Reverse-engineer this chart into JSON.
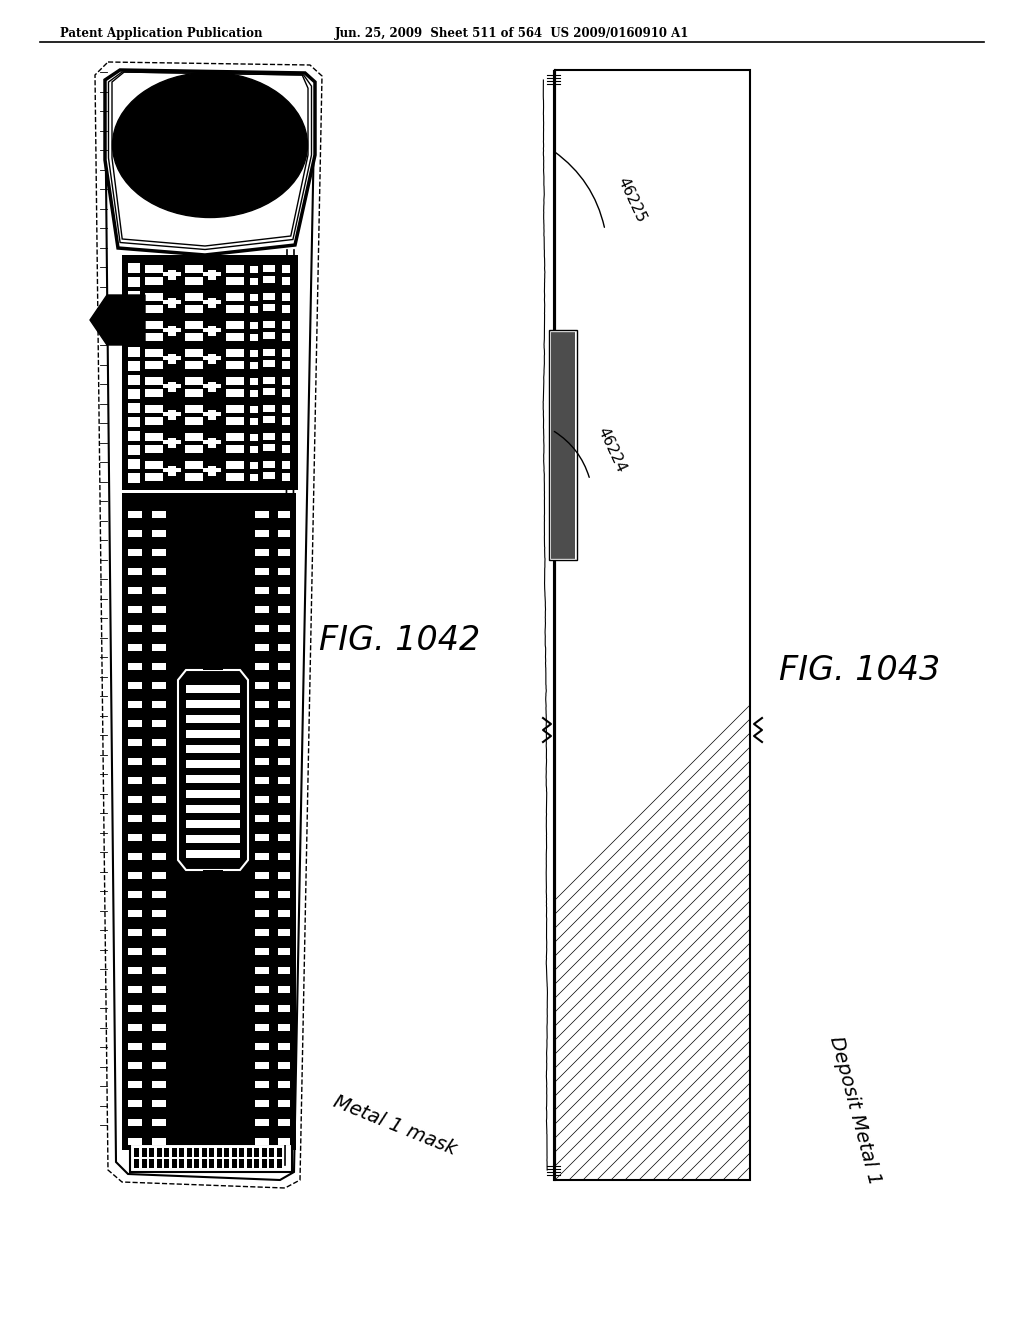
{
  "page_title_left": "Patent Application Publication",
  "page_title_center": "Jun. 25, 2009  Sheet 511 of 564  US 2009/0160910 A1",
  "fig1_label": "FIG. 1042",
  "fig2_label": "FIG. 1043",
  "fig1_sublabel": "Metal 1 mask",
  "fig2_sublabel": "Deposit Metal 1",
  "label_46224": "46224",
  "label_46225": "46225",
  "bg_color": "#ffffff"
}
